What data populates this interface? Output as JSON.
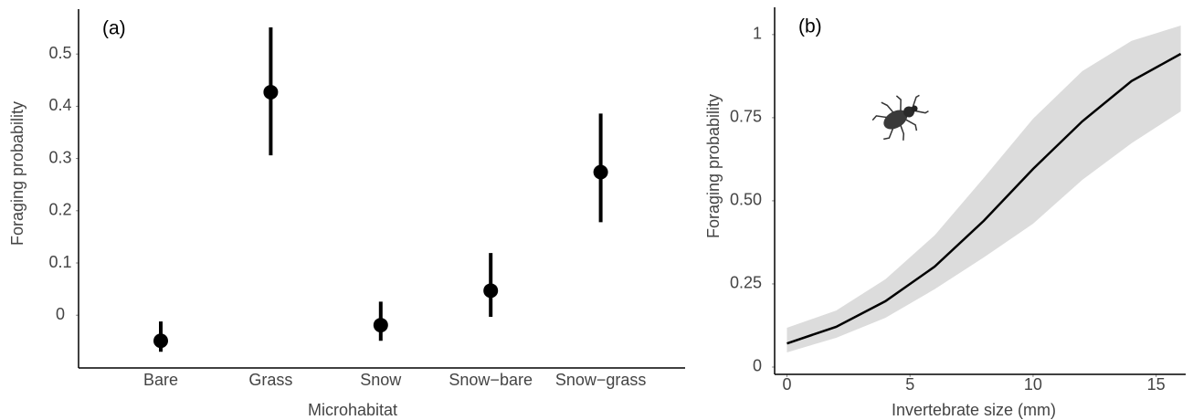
{
  "chart_data": [
    {
      "type": "pointrange",
      "label": "(a)",
      "xlabel": "Microhabitat",
      "ylabel": "Foraging probability",
      "categories": [
        "Bare",
        "Grass",
        "Snow",
        "Snow−bare",
        "Snow−grass"
      ],
      "values": [
        -0.049,
        0.427,
        -0.019,
        0.047,
        0.274
      ],
      "lower": [
        -0.07,
        0.306,
        -0.049,
        -0.003,
        0.178
      ],
      "upper": [
        -0.012,
        0.551,
        0.026,
        0.119,
        0.386
      ],
      "color": "#000000",
      "ylim": [
        -0.101,
        0.586
      ],
      "yticks": [
        0,
        0.1,
        0.2,
        0.3,
        0.4,
        0.5
      ],
      "grid": false
    },
    {
      "type": "line",
      "label": "(b)",
      "xlabel": "Invertebrate size (mm)",
      "ylabel": "Foraging probability",
      "x": [
        0,
        2,
        4,
        6,
        8,
        10,
        12,
        14,
        16
      ],
      "values": [
        0.071,
        0.121,
        0.198,
        0.302,
        0.44,
        0.596,
        0.739,
        0.86,
        0.942
      ],
      "lower": [
        0.044,
        0.088,
        0.148,
        0.234,
        0.33,
        0.431,
        0.563,
        0.673,
        0.769
      ],
      "upper": [
        0.118,
        0.17,
        0.264,
        0.396,
        0.569,
        0.747,
        0.89,
        0.981,
        1.027
      ],
      "color": "#000000",
      "ribbon_color": "#dcdcdc",
      "xlim": [
        -0.5,
        16.2
      ],
      "xticks": [
        0,
        5,
        10,
        15
      ],
      "ylim": [
        -0.022,
        1.082
      ],
      "yticks": [
        0,
        {
          "value": 0.25,
          "label": "0.25"
        },
        {
          "value": 0.5,
          "label": "0.50"
        },
        {
          "value": 0.75,
          "label": "0.75"
        },
        1
      ],
      "grid": false
    }
  ]
}
